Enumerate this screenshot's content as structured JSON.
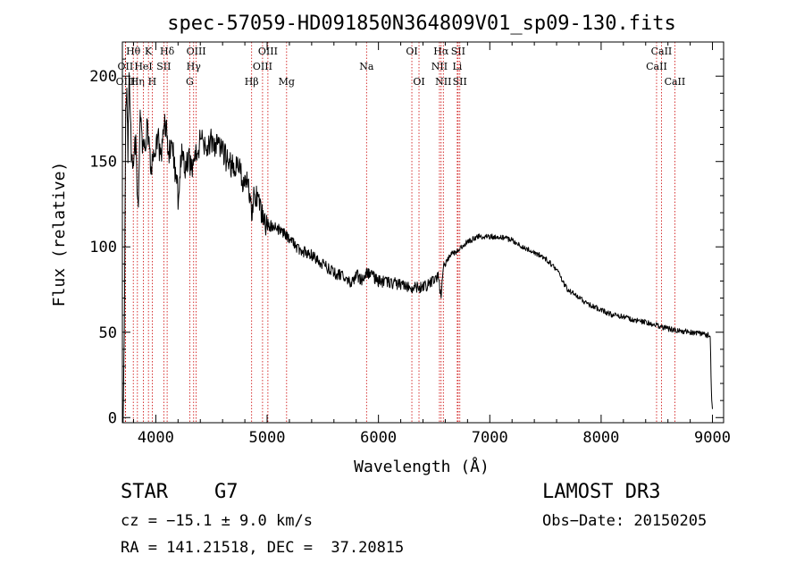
{
  "chart_data": {
    "type": "line",
    "title": "spec-57059-HD091850N364809V01_sp09-130.fits",
    "xlabel": "Wavelength (Å)",
    "ylabel": "Flux (relative)",
    "xlim": [
      3700,
      9100
    ],
    "ylim": [
      -3,
      220
    ],
    "xticks": [
      4000,
      5000,
      6000,
      7000,
      8000,
      9000
    ],
    "yticks": [
      0,
      50,
      100,
      150,
      200
    ],
    "series": [
      {
        "name": "flux",
        "x": [
          3700,
          3710,
          3720,
          3730,
          3740,
          3750,
          3760,
          3780,
          3800,
          3820,
          3840,
          3860,
          3880,
          3900,
          3920,
          3940,
          3960,
          3980,
          4000,
          4020,
          4040,
          4060,
          4080,
          4100,
          4120,
          4150,
          4180,
          4200,
          4230,
          4260,
          4300,
          4340,
          4380,
          4420,
          4460,
          4500,
          4550,
          4600,
          4650,
          4700,
          4750,
          4800,
          4830,
          4861,
          4880,
          4920,
          4960,
          5000,
          5050,
          5100,
          5150,
          5200,
          5250,
          5300,
          5400,
          5500,
          5600,
          5700,
          5750,
          5800,
          5850,
          5900,
          5950,
          6000,
          6100,
          6200,
          6300,
          6400,
          6450,
          6500,
          6540,
          6563,
          6580,
          6600,
          6650,
          6700,
          6750,
          6800,
          6900,
          7000,
          7100,
          7200,
          7300,
          7400,
          7500,
          7600,
          7650,
          7700,
          7800,
          7900,
          8000,
          8100,
          8200,
          8300,
          8400,
          8500,
          8600,
          8700,
          8800,
          8900,
          8980,
          8990,
          9000
        ],
        "y": [
          0,
          5,
          80,
          180,
          195,
          150,
          200,
          155,
          150,
          165,
          120,
          175,
          160,
          155,
          170,
          165,
          140,
          158,
          152,
          170,
          150,
          160,
          175,
          165,
          155,
          160,
          140,
          130,
          155,
          145,
          150,
          148,
          158,
          165,
          158,
          162,
          158,
          155,
          150,
          145,
          148,
          135,
          140,
          120,
          132,
          125,
          118,
          113,
          112,
          110,
          108,
          105,
          101,
          98,
          95,
          90,
          85,
          82,
          78,
          84,
          80,
          85,
          83,
          80,
          79,
          78,
          76,
          76,
          78,
          80,
          82,
          70,
          88,
          90,
          96,
          97,
          100,
          103,
          106,
          106,
          106,
          104,
          100,
          97,
          93,
          87,
          80,
          75,
          70,
          66,
          63,
          60,
          59,
          57,
          56,
          54,
          52,
          51,
          50,
          49,
          48,
          15,
          5
        ]
      }
    ],
    "line_markers": [
      {
        "label": "Hθ",
        "wavelength": 3798,
        "row": 0
      },
      {
        "label": "OII",
        "wavelength": 3727,
        "row": 1
      },
      {
        "label": "OIII",
        "wavelength": 3729,
        "row": 2
      },
      {
        "label": "Hη",
        "wavelength": 3835,
        "row": 2
      },
      {
        "label": "K",
        "wavelength": 3934,
        "row": 0
      },
      {
        "label": "HeI",
        "wavelength": 3889,
        "row": 1
      },
      {
        "label": "H",
        "wavelength": 3968,
        "row": 2
      },
      {
        "label": "SII",
        "wavelength": 4072,
        "row": 1
      },
      {
        "label": "Hδ",
        "wavelength": 4102,
        "row": 0
      },
      {
        "label": "OIII",
        "wavelength": 4363,
        "row": 0
      },
      {
        "label": "Hγ",
        "wavelength": 4340,
        "row": 1
      },
      {
        "label": "G",
        "wavelength": 4305,
        "row": 2
      },
      {
        "label": "Hβ",
        "wavelength": 4861,
        "row": 2
      },
      {
        "label": "OIII",
        "wavelength": 5007,
        "row": 0
      },
      {
        "label": "OIII",
        "wavelength": 4959,
        "row": 1
      },
      {
        "label": "Mg",
        "wavelength": 5175,
        "row": 2
      },
      {
        "label": "Na",
        "wavelength": 5893,
        "row": 1
      },
      {
        "label": "OI",
        "wavelength": 6300,
        "row": 0
      },
      {
        "label": "OI",
        "wavelength": 6364,
        "row": 2
      },
      {
        "label": "Hα",
        "wavelength": 6563,
        "row": 0
      },
      {
        "label": "NII",
        "wavelength": 6548,
        "row": 1
      },
      {
        "label": "NII",
        "wavelength": 6583,
        "row": 2
      },
      {
        "label": "SII",
        "wavelength": 6716,
        "row": 0
      },
      {
        "label": "Li",
        "wavelength": 6708,
        "row": 1
      },
      {
        "label": "SII",
        "wavelength": 6731,
        "row": 2
      },
      {
        "label": "CaII",
        "wavelength": 8542,
        "row": 0
      },
      {
        "label": "CaII",
        "wavelength": 8498,
        "row": 1
      },
      {
        "label": "CaII",
        "wavelength": 8662,
        "row": 2
      }
    ]
  },
  "info": {
    "object_class": "STAR",
    "subclass": "G7",
    "survey": "LAMOST DR3",
    "cz": "cz = −15.1 ± 9.0 km/s",
    "obs_date": "Obs−Date: 20150205",
    "coords": "RA = 141.21518, DEC =  37.20815"
  },
  "colors": {
    "spectrum": "#000000",
    "marker_line": "#cc0000",
    "axes": "#000000"
  }
}
